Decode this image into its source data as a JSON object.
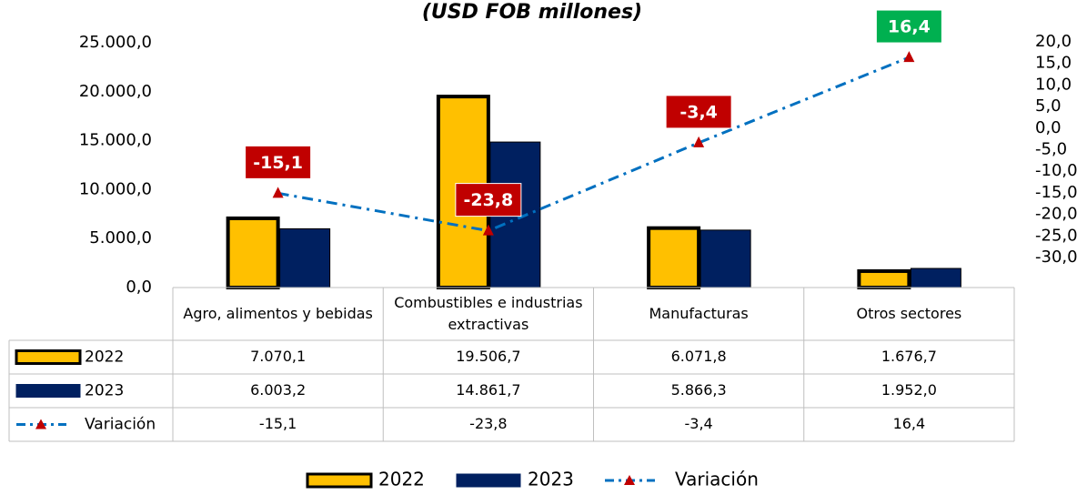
{
  "chart_data": {
    "type": "bar",
    "title": "(USD FOB millones)",
    "categories": [
      "Agro, alimentos y bebidas",
      "Combustibles e industrias extractivas",
      "Manufacturas",
      "Otros sectores"
    ],
    "series": [
      {
        "name": "2022",
        "color": "#FFC000",
        "values": [
          7070.1,
          19506.7,
          6071.8,
          1676.7
        ],
        "value_labels": [
          "7.070,1",
          "19.506,7",
          "6.071,8",
          "1.676,7"
        ]
      },
      {
        "name": "2023",
        "color": "#002060",
        "values": [
          6003.2,
          14861.7,
          5866.3,
          1952.0
        ],
        "value_labels": [
          "6.003,2",
          "14.861,7",
          "5.866,3",
          "1.952,0"
        ]
      },
      {
        "name": "Variación",
        "type": "line",
        "axis": "y2",
        "color": "#0070C0",
        "marker_color": "#C00000",
        "values": [
          -15.1,
          -23.8,
          -3.4,
          16.4
        ],
        "value_labels": [
          "-15,1",
          "-23,8",
          "-3,4",
          "16,4"
        ]
      }
    ],
    "ylim": [
      0,
      25000
    ],
    "yticks": [
      {
        "value": 0,
        "label": "0,0"
      },
      {
        "value": 5000,
        "label": "5.000,0"
      },
      {
        "value": 10000,
        "label": "10.000,0"
      },
      {
        "value": 15000,
        "label": "15.000,0"
      },
      {
        "value": 20000,
        "label": "20.000,0"
      },
      {
        "value": 25000,
        "label": "25.000,0"
      }
    ],
    "y2lim": [
      -30,
      20
    ],
    "y2ticks": [
      {
        "value": -30,
        "label": "-30,0"
      },
      {
        "value": -25,
        "label": "-25,0"
      },
      {
        "value": -20,
        "label": "-20,0"
      },
      {
        "value": -15,
        "label": "-15,0"
      },
      {
        "value": -10,
        "label": "-10,0"
      },
      {
        "value": -5,
        "label": "-5,0"
      },
      {
        "value": 0,
        "label": "0,0"
      },
      {
        "value": 5,
        "label": "5,0"
      },
      {
        "value": 10,
        "label": "10,0"
      },
      {
        "value": 15,
        "label": "15,0"
      },
      {
        "value": 20,
        "label": "20,0"
      }
    ],
    "legend": "bottom",
    "data_table": true
  }
}
